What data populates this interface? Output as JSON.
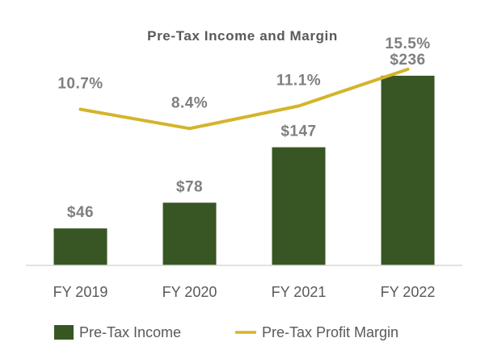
{
  "chart_data": {
    "type": "bar",
    "title": "Pre-Tax Income and Margin",
    "categories": [
      "FY 2019",
      "FY 2020",
      "FY 2021",
      "FY 2022"
    ],
    "series": [
      {
        "name": "Pre-Tax Income",
        "type": "bar",
        "values": [
          46,
          78,
          147,
          236
        ],
        "labels": [
          "$46",
          "$78",
          "$147",
          "$236"
        ],
        "color": "#375623"
      },
      {
        "name": "Pre-Tax Profit Margin",
        "type": "line",
        "values": [
          10.7,
          8.4,
          11.1,
          15.5
        ],
        "labels": [
          "10.7%",
          "8.4%",
          "11.1%",
          "15.5%"
        ],
        "color": "#d4b42a"
      }
    ],
    "bar_axis_range": [
      0,
      270
    ],
    "line_axis_range": [
      -8,
      18
    ],
    "grid": false,
    "legend_position": "bottom",
    "colors": {
      "axis_line": "#d9d9d9",
      "label_text": "#7f7f7f",
      "title_text": "#595959"
    }
  }
}
